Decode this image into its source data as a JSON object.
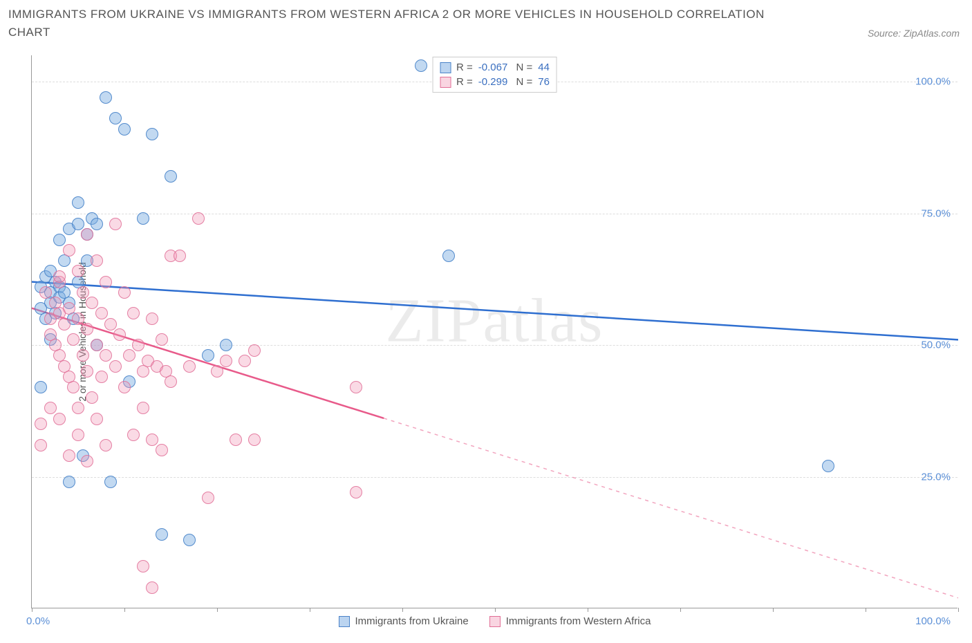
{
  "title": "IMMIGRANTS FROM UKRAINE VS IMMIGRANTS FROM WESTERN AFRICA 2 OR MORE VEHICLES IN HOUSEHOLD CORRELATION CHART",
  "source": "Source: ZipAtlas.com",
  "watermark": "ZIPatlas",
  "chart": {
    "type": "scatter",
    "y_axis_title": "2 or more Vehicles in Household",
    "xlim": [
      0,
      100
    ],
    "ylim": [
      0,
      105
    ],
    "x_tick_positions": [
      0,
      10,
      20,
      30,
      40,
      50,
      60,
      70,
      80,
      90,
      100
    ],
    "x_axis_label_left": "0.0%",
    "x_axis_label_right": "100.0%",
    "y_gridlines": [
      {
        "value": 25,
        "label": "25.0%"
      },
      {
        "value": 50,
        "label": "50.0%"
      },
      {
        "value": 75,
        "label": "75.0%"
      },
      {
        "value": 100,
        "label": "100.0%"
      }
    ],
    "grid_color": "#dddddd",
    "axis_color": "#999999",
    "label_color": "#5b8fd6",
    "background_color": "#ffffff",
    "marker_radius": 9,
    "series": [
      {
        "name": "Immigrants from Ukraine",
        "color_fill": "rgba(120,170,225,0.45)",
        "color_stroke": "#4a82c8",
        "class": "blue",
        "stats": {
          "R": "-0.067",
          "N": "44"
        },
        "trend": {
          "x1": 0,
          "y1": 62,
          "x2": 100,
          "y2": 51,
          "solid_until_x": 100,
          "color": "#2f6fd0",
          "width": 2.5
        },
        "points": [
          [
            1,
            61
          ],
          [
            1.5,
            63
          ],
          [
            2,
            60
          ],
          [
            2,
            64
          ],
          [
            2.5,
            62
          ],
          [
            3,
            61
          ],
          [
            3,
            70
          ],
          [
            3.5,
            66
          ],
          [
            4,
            72
          ],
          [
            4,
            24
          ],
          [
            4.5,
            55
          ],
          [
            5,
            73
          ],
          [
            5,
            77
          ],
          [
            5.5,
            29
          ],
          [
            6,
            71
          ],
          [
            6.5,
            74
          ],
          [
            7,
            73
          ],
          [
            7,
            50
          ],
          [
            8,
            97
          ],
          [
            8.5,
            24
          ],
          [
            9,
            93
          ],
          [
            10,
            91
          ],
          [
            10.5,
            43
          ],
          [
            12,
            74
          ],
          [
            13,
            90
          ],
          [
            14,
            14
          ],
          [
            15,
            82
          ],
          [
            17,
            13
          ],
          [
            19,
            48
          ],
          [
            21,
            50
          ],
          [
            42,
            103
          ],
          [
            45,
            67
          ],
          [
            86,
            27
          ],
          [
            2,
            58
          ],
          [
            3,
            59
          ],
          [
            1,
            57
          ],
          [
            2.5,
            56
          ],
          [
            3.5,
            60
          ],
          [
            1.5,
            55
          ],
          [
            4,
            58
          ],
          [
            1,
            42
          ],
          [
            2,
            51
          ],
          [
            6,
            66
          ],
          [
            5,
            62
          ]
        ]
      },
      {
        "name": "Immigrants from Western Africa",
        "color_fill": "rgba(240,150,180,0.35)",
        "color_stroke": "#e16e96",
        "class": "pink",
        "stats": {
          "R": "-0.299",
          "N": "76"
        },
        "trend": {
          "x1": 0,
          "y1": 57,
          "x2": 100,
          "y2": 2,
          "solid_until_x": 38,
          "color": "#e85a8a",
          "width": 2.5
        },
        "points": [
          [
            1,
            35
          ],
          [
            1.5,
            60
          ],
          [
            2,
            55
          ],
          [
            2,
            52
          ],
          [
            2.5,
            58
          ],
          [
            2.5,
            50
          ],
          [
            3,
            62
          ],
          [
            3,
            56
          ],
          [
            3,
            48
          ],
          [
            3.5,
            54
          ],
          [
            3.5,
            46
          ],
          [
            4,
            68
          ],
          [
            4,
            57
          ],
          [
            4,
            44
          ],
          [
            4.5,
            51
          ],
          [
            4.5,
            42
          ],
          [
            5,
            64
          ],
          [
            5,
            55
          ],
          [
            5,
            38
          ],
          [
            5.5,
            60
          ],
          [
            5.5,
            48
          ],
          [
            6,
            71
          ],
          [
            6,
            53
          ],
          [
            6,
            45
          ],
          [
            6.5,
            58
          ],
          [
            6.5,
            40
          ],
          [
            7,
            66
          ],
          [
            7,
            50
          ],
          [
            7,
            36
          ],
          [
            7.5,
            56
          ],
          [
            7.5,
            44
          ],
          [
            8,
            62
          ],
          [
            8,
            48
          ],
          [
            8,
            31
          ],
          [
            8.5,
            54
          ],
          [
            9,
            73
          ],
          [
            9,
            46
          ],
          [
            9.5,
            52
          ],
          [
            10,
            60
          ],
          [
            10,
            42
          ],
          [
            10.5,
            48
          ],
          [
            11,
            56
          ],
          [
            11,
            33
          ],
          [
            11.5,
            50
          ],
          [
            12,
            45
          ],
          [
            12,
            38
          ],
          [
            12.5,
            47
          ],
          [
            13,
            55
          ],
          [
            13,
            32
          ],
          [
            13.5,
            46
          ],
          [
            14,
            51
          ],
          [
            14,
            30
          ],
          [
            14.5,
            45
          ],
          [
            15,
            67
          ],
          [
            15,
            43
          ],
          [
            16,
            67
          ],
          [
            17,
            46
          ],
          [
            18,
            74
          ],
          [
            19,
            21
          ],
          [
            20,
            45
          ],
          [
            21,
            47
          ],
          [
            22,
            32
          ],
          [
            23,
            47
          ],
          [
            24,
            32
          ],
          [
            24,
            49
          ],
          [
            35,
            42
          ],
          [
            35,
            22
          ],
          [
            13,
            4
          ],
          [
            12,
            8
          ],
          [
            4,
            29
          ],
          [
            2,
            38
          ],
          [
            3,
            36
          ],
          [
            1,
            31
          ],
          [
            5,
            33
          ],
          [
            6,
            28
          ],
          [
            3,
            63
          ]
        ]
      }
    ]
  },
  "legend": {
    "items": [
      {
        "label": "Immigrants from Ukraine",
        "class": "blue"
      },
      {
        "label": "Immigrants from Western Africa",
        "class": "pink"
      }
    ]
  }
}
